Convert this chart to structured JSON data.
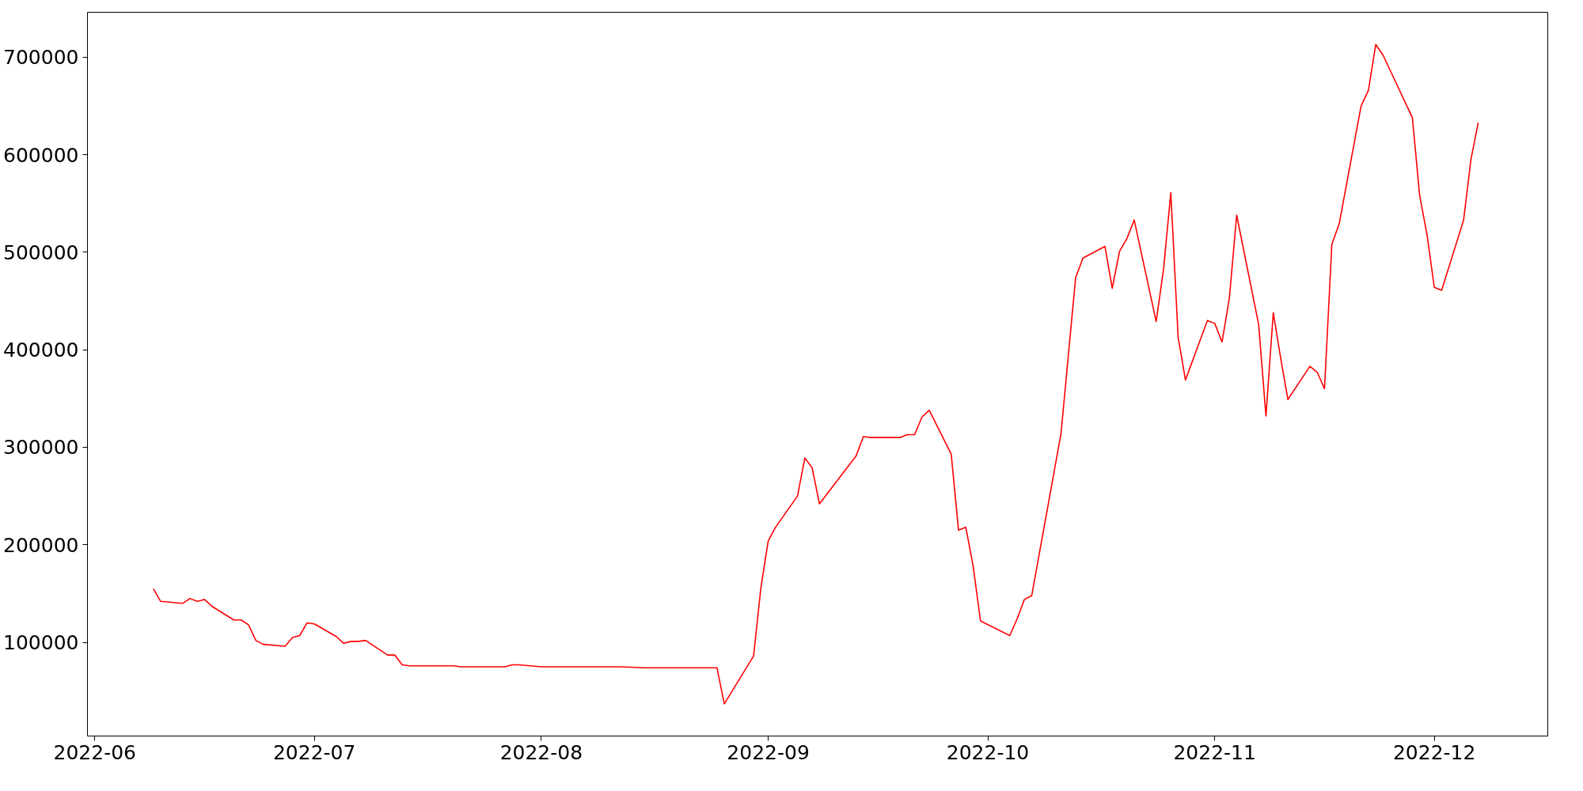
{
  "chart_data": {
    "type": "line",
    "x": [
      "2022-06-09",
      "2022-06-10",
      "2022-06-13",
      "2022-06-14",
      "2022-06-15",
      "2022-06-16",
      "2022-06-17",
      "2022-06-20",
      "2022-06-21",
      "2022-06-22",
      "2022-06-23",
      "2022-06-24",
      "2022-06-27",
      "2022-06-28",
      "2022-06-29",
      "2022-06-30",
      "2022-07-01",
      "2022-07-04",
      "2022-07-05",
      "2022-07-06",
      "2022-07-07",
      "2022-07-08",
      "2022-07-11",
      "2022-07-12",
      "2022-07-13",
      "2022-07-14",
      "2022-07-20",
      "2022-07-21",
      "2022-07-27",
      "2022-07-28",
      "2022-07-29",
      "2022-08-01",
      "2022-08-03",
      "2022-08-12",
      "2022-08-15",
      "2022-08-25",
      "2022-08-26",
      "2022-08-30",
      "2022-08-31",
      "2022-09-01",
      "2022-09-02",
      "2022-09-05",
      "2022-09-06",
      "2022-09-07",
      "2022-09-08",
      "2022-09-13",
      "2022-09-14",
      "2022-09-15",
      "2022-09-19",
      "2022-09-20",
      "2022-09-21",
      "2022-09-22",
      "2022-09-23",
      "2022-09-26",
      "2022-09-27",
      "2022-09-28",
      "2022-09-29",
      "2022-09-30",
      "2022-10-04",
      "2022-10-05",
      "2022-10-06",
      "2022-10-07",
      "2022-10-11",
      "2022-10-13",
      "2022-10-14",
      "2022-10-17",
      "2022-10-18",
      "2022-10-19",
      "2022-10-20",
      "2022-10-21",
      "2022-10-24",
      "2022-10-25",
      "2022-10-26",
      "2022-10-27",
      "2022-10-28",
      "2022-10-31",
      "2022-11-01",
      "2022-11-02",
      "2022-11-03",
      "2022-11-04",
      "2022-11-07",
      "2022-11-08",
      "2022-11-09",
      "2022-11-10",
      "2022-11-11",
      "2022-11-14",
      "2022-11-15",
      "2022-11-16",
      "2022-11-17",
      "2022-11-18",
      "2022-11-21",
      "2022-11-22",
      "2022-11-23",
      "2022-11-24",
      "2022-11-28",
      "2022-11-29",
      "2022-11-30",
      "2022-12-01",
      "2022-12-02",
      "2022-12-05",
      "2022-12-06",
      "2022-12-07"
    ],
    "series": [
      {
        "color": "#ff0000",
        "values": [
          155000,
          142000,
          140000,
          145000,
          142000,
          144000,
          137000,
          123000,
          123000,
          118000,
          102000,
          98000,
          96000,
          105000,
          107000,
          120000,
          119000,
          106000,
          99000,
          101000,
          101000,
          102000,
          87000,
          87000,
          77000,
          76000,
          76000,
          75000,
          75000,
          77000,
          77000,
          75000,
          75000,
          75000,
          74000,
          74000,
          37000,
          86000,
          156000,
          204000,
          218000,
          250000,
          289000,
          279000,
          242000,
          291000,
          311000,
          310000,
          310000,
          313000,
          313000,
          331000,
          338000,
          293000,
          215000,
          218000,
          178000,
          122000,
          107000,
          124000,
          144000,
          148000,
          314000,
          474000,
          494000,
          506000,
          463000,
          501000,
          514000,
          533000,
          429000,
          482000,
          561000,
          413000,
          369000,
          430000,
          427000,
          408000,
          453000,
          538000,
          426000,
          332000,
          438000,
          392000,
          349000,
          383000,
          377000,
          360000,
          508000,
          529000,
          650000,
          666000,
          713000,
          702000,
          638000,
          558000,
          518000,
          464000,
          461000,
          533000,
          595000,
          633000
        ]
      }
    ],
    "xlim": [
      "2022-05-31",
      "2022-12-16T12:00"
    ],
    "xticks": [
      {
        "value": "2022-06-01",
        "label": "2022-06"
      },
      {
        "value": "2022-07-01",
        "label": "2022-07"
      },
      {
        "value": "2022-08-01",
        "label": "2022-08"
      },
      {
        "value": "2022-09-01",
        "label": "2022-09"
      },
      {
        "value": "2022-10-01",
        "label": "2022-10"
      },
      {
        "value": "2022-11-01",
        "label": "2022-11"
      },
      {
        "value": "2022-12-01",
        "label": "2022-12"
      }
    ],
    "ylim": [
      4000,
      746000
    ],
    "yticks": [
      100000,
      200000,
      300000,
      400000,
      500000,
      600000,
      700000
    ],
    "grid": false,
    "marker": "none",
    "line_style": "solid"
  }
}
